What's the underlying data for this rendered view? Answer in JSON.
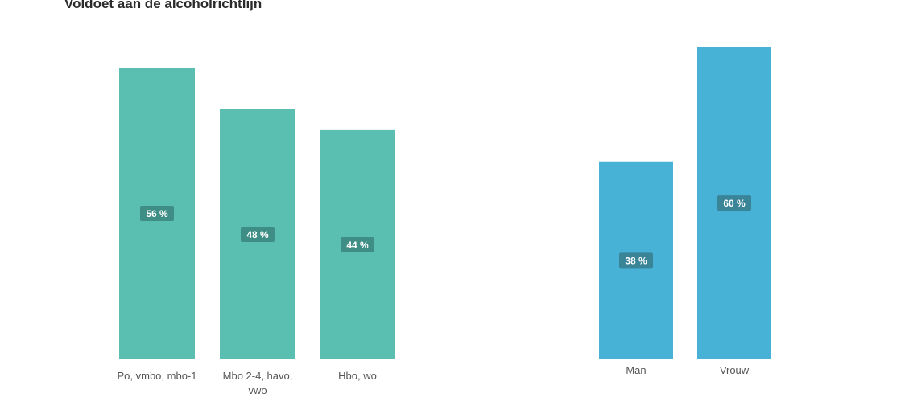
{
  "title": "Voldoet aan de alcoholrichtlijn",
  "chart_data": [
    {
      "type": "bar",
      "categories": [
        "Po, vmbo, mbo-1",
        "Mbo 2-4, havo, vwo",
        "Hbo, wo"
      ],
      "values": [
        56,
        48,
        44
      ],
      "value_labels": [
        "56 %",
        "48 %",
        "44 %"
      ],
      "title": "",
      "xlabel": "",
      "ylabel": "",
      "ylim": [
        0,
        62
      ],
      "grid": false,
      "color": "#5ABFB0",
      "label_bg": "#3E8E86"
    },
    {
      "type": "bar",
      "categories": [
        "Man",
        "Vrouw"
      ],
      "values": [
        38,
        60
      ],
      "value_labels": [
        "38 %",
        "60 %"
      ],
      "title": "",
      "xlabel": "",
      "ylabel": "",
      "ylim": [
        0,
        62
      ],
      "grid": false,
      "color": "#48B1D6",
      "label_bg": "#3A8498"
    }
  ]
}
